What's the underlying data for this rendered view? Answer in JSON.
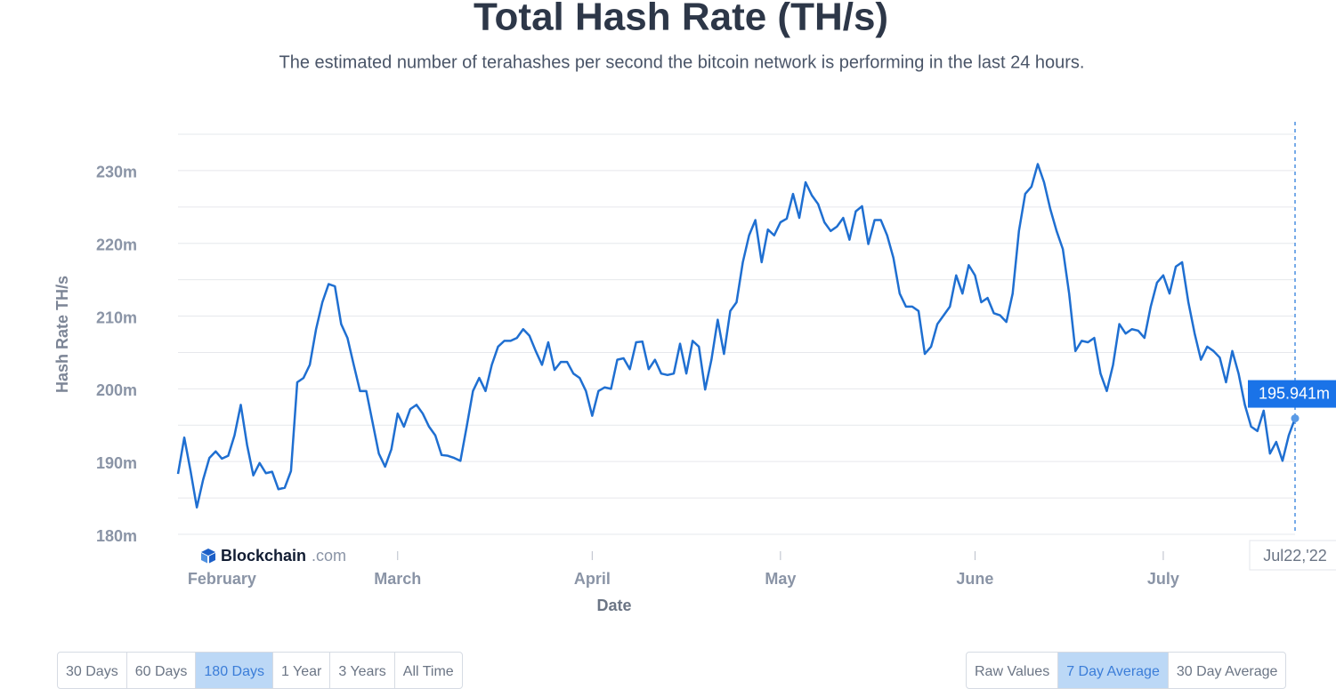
{
  "chart_data": {
    "type": "line",
    "title": "Total Hash Rate (TH/s)",
    "subtitle": "The estimated number of terahashes per second the bitcoin network is performing in the last 24 hours.",
    "y_label": "Hash Rate TH/s",
    "x_label": "Date",
    "ylim": [
      180,
      235
    ],
    "yticks": [
      {
        "value": 180,
        "label": "180m"
      },
      {
        "value": 190,
        "label": "190m"
      },
      {
        "value": 200,
        "label": "200m"
      },
      {
        "value": 210,
        "label": "210m"
      },
      {
        "value": 220,
        "label": "220m"
      },
      {
        "value": 230,
        "label": "230m"
      }
    ],
    "y_gridlines": [
      180,
      185,
      190,
      195,
      200,
      205,
      210,
      215,
      220,
      225,
      230,
      235
    ],
    "grid": true,
    "categories": [
      null,
      null,
      null,
      null,
      null,
      null,
      null,
      "February",
      null,
      null,
      null,
      null,
      null,
      null,
      null,
      null,
      null,
      null,
      null,
      null,
      null,
      null,
      null,
      null,
      null,
      null,
      null,
      null,
      null,
      null,
      null,
      null,
      null,
      null,
      null,
      "March",
      null,
      null,
      null,
      null,
      null,
      null,
      null,
      null,
      null,
      null,
      null,
      null,
      null,
      null,
      null,
      null,
      null,
      null,
      null,
      null,
      null,
      null,
      null,
      null,
      null,
      null,
      null,
      null,
      null,
      null,
      "April",
      null,
      null,
      null,
      null,
      null,
      null,
      null,
      null,
      null,
      null,
      null,
      null,
      null,
      null,
      null,
      null,
      null,
      null,
      null,
      null,
      null,
      null,
      null,
      null,
      null,
      null,
      null,
      null,
      null,
      "May",
      null,
      null,
      null,
      null,
      null,
      null,
      null,
      null,
      null,
      null,
      null,
      null,
      null,
      null,
      null,
      null,
      null,
      null,
      null,
      null,
      null,
      null,
      null,
      null,
      null,
      null,
      null,
      null,
      null,
      null,
      "June",
      null,
      null,
      null,
      null,
      null,
      null,
      null,
      null,
      null,
      null,
      null,
      null,
      null,
      null,
      null,
      null,
      null,
      null,
      null,
      null,
      null,
      null,
      null,
      null,
      null,
      null,
      null,
      null,
      null,
      "July",
      null,
      null,
      null,
      null,
      null,
      null,
      null,
      null,
      null,
      null,
      null,
      null,
      null,
      null,
      null,
      null,
      null,
      null,
      null,
      null,
      null
    ],
    "series": [
      {
        "color": "#1f6fd1",
        "values": [
          188.3,
          193.3,
          188.7,
          183.7,
          187.5,
          190.5,
          191.4,
          190.4,
          190.8,
          193.6,
          197.8,
          192.3,
          188.1,
          189.8,
          188.4,
          188.6,
          186.2,
          186.4,
          188.7,
          200.9,
          201.5,
          203.3,
          208.2,
          211.9,
          214.4,
          214.1,
          208.9,
          207.0,
          203.3,
          199.7,
          199.7,
          195.4,
          191.1,
          189.3,
          191.7,
          196.6,
          194.8,
          197.2,
          197.8,
          196.6,
          194.8,
          193.6,
          190.9,
          190.8,
          190.5,
          190.1,
          194.8,
          199.7,
          201.5,
          199.7,
          203.3,
          205.8,
          206.6,
          206.6,
          207.0,
          208.2,
          207.3,
          205.2,
          203.3,
          206.4,
          202.6,
          203.7,
          203.7,
          202.1,
          201.5,
          199.7,
          196.3,
          199.7,
          200.2,
          200.0,
          204.0,
          204.2,
          202.7,
          206.4,
          206.5,
          202.7,
          204.0,
          202.1,
          201.9,
          202.1,
          206.2,
          202.1,
          206.6,
          205.8,
          199.9,
          204.0,
          209.5,
          204.8,
          210.7,
          211.9,
          217.4,
          221.1,
          223.2,
          217.4,
          221.9,
          221.1,
          222.9,
          223.4,
          226.8,
          223.5,
          228.4,
          226.6,
          225.4,
          222.9,
          221.7,
          222.3,
          223.5,
          220.5,
          224.4,
          225.1,
          219.9,
          223.2,
          223.2,
          221.1,
          218.0,
          213.1,
          211.3,
          211.3,
          210.7,
          204.8,
          205.8,
          208.9,
          210.1,
          211.3,
          215.6,
          213.1,
          217.0,
          215.6,
          211.9,
          212.5,
          210.4,
          210.1,
          209.2,
          213.1,
          221.7,
          226.8,
          227.8,
          230.9,
          228.4,
          224.7,
          221.7,
          219.2,
          213.1,
          205.2,
          206.6,
          206.4,
          207.0,
          202.1,
          199.7,
          203.3,
          208.9,
          207.6,
          208.2,
          208.0,
          207.0,
          211.3,
          214.6,
          215.6,
          213.1,
          216.8,
          217.4,
          211.9,
          207.6,
          204.0,
          205.8,
          205.2,
          204.3,
          200.9,
          205.2,
          202.1,
          197.8,
          194.8,
          194.2,
          197.0,
          191.1,
          192.7,
          190.1,
          193.6,
          195.941
        ]
      }
    ],
    "tooltip": {
      "x_label": "Jul22,'22",
      "y_label": "195.941m"
    },
    "brand": {
      "name": "Blockchain",
      "suffix": ".com"
    },
    "range_buttons": [
      {
        "label": "30 Days",
        "active": false
      },
      {
        "label": "60 Days",
        "active": false
      },
      {
        "label": "180 Days",
        "active": true
      },
      {
        "label": "1 Year",
        "active": false
      },
      {
        "label": "3 Years",
        "active": false
      },
      {
        "label": "All Time",
        "active": false
      }
    ],
    "mode_buttons": [
      {
        "label": "Raw Values",
        "active": false
      },
      {
        "label": "7 Day Average",
        "active": true
      },
      {
        "label": "30 Day Average",
        "active": false
      }
    ]
  }
}
